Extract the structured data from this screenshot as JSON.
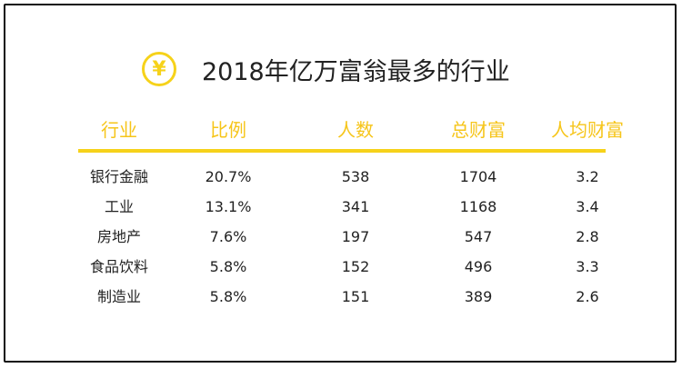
{
  "title": "2018年亿万富翁最多的行业",
  "icon": "yen-icon",
  "icon_glyph": "¥",
  "accent_color": "#f6d21a",
  "chart_data": {
    "type": "table",
    "columns": [
      "行业",
      "比例",
      "人数",
      "总财富",
      "人均财富"
    ],
    "rows": [
      [
        "银行金融",
        "20.7%",
        "538",
        "1704",
        "3.2"
      ],
      [
        "工业",
        "13.1%",
        "341",
        "1168",
        "3.4"
      ],
      [
        "房地产",
        "7.6%",
        "197",
        "547",
        "2.8"
      ],
      [
        "食品饮料",
        "5.8%",
        "152",
        "496",
        "3.3"
      ],
      [
        "制造业",
        "5.8%",
        "151",
        "389",
        "2.6"
      ]
    ]
  }
}
